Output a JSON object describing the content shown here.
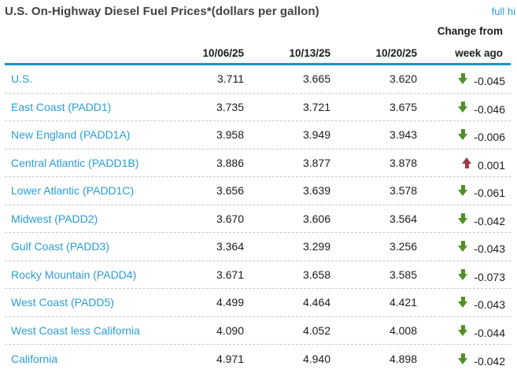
{
  "header": {
    "title": "U.S. On-Highway Diesel Fuel Prices*(dollars per gallon)",
    "link_label": "full hi",
    "change_header_line1": "Change from",
    "change_header_line2": "week ago"
  },
  "table": {
    "date_columns": [
      "10/06/25",
      "10/13/25",
      "10/20/25"
    ],
    "rows": [
      {
        "label": "U.S.",
        "prices": [
          "3.711",
          "3.665",
          "3.620"
        ],
        "change": "-0.045",
        "direction": "down"
      },
      {
        "label": "East Coast (PADD1)",
        "prices": [
          "3.735",
          "3.721",
          "3.675"
        ],
        "change": "-0.046",
        "direction": "down"
      },
      {
        "label": "New England (PADD1A)",
        "prices": [
          "3.958",
          "3.949",
          "3.943"
        ],
        "change": "-0.006",
        "direction": "down"
      },
      {
        "label": "Central Atlantic (PADD1B)",
        "prices": [
          "3.886",
          "3.877",
          "3.878"
        ],
        "change": "0.001",
        "direction": "up"
      },
      {
        "label": "Lower Atlantic (PADD1C)",
        "prices": [
          "3.656",
          "3.639",
          "3.578"
        ],
        "change": "-0.061",
        "direction": "down"
      },
      {
        "label": "Midwest (PADD2)",
        "prices": [
          "3.670",
          "3.606",
          "3.564"
        ],
        "change": "-0.042",
        "direction": "down"
      },
      {
        "label": "Gulf Coast (PADD3)",
        "prices": [
          "3.364",
          "3.299",
          "3.256"
        ],
        "change": "-0.043",
        "direction": "down"
      },
      {
        "label": "Rocky Mountain (PADD4)",
        "prices": [
          "3.671",
          "3.658",
          "3.585"
        ],
        "change": "-0.073",
        "direction": "down"
      },
      {
        "label": "West Coast (PADD5)",
        "prices": [
          "4.499",
          "4.464",
          "4.421"
        ],
        "change": "-0.043",
        "direction": "down"
      },
      {
        "label": "West Coast less California",
        "prices": [
          "4.090",
          "4.052",
          "4.008"
        ],
        "change": "-0.044",
        "direction": "down"
      },
      {
        "label": "California",
        "prices": [
          "4.971",
          "4.940",
          "4.898"
        ],
        "change": "-0.042",
        "direction": "down"
      }
    ]
  },
  "colors": {
    "accent_blue": "#1496d2",
    "label_blue": "#2b9cd8",
    "down_green": "#4e9122",
    "up_red": "#a13a44"
  }
}
